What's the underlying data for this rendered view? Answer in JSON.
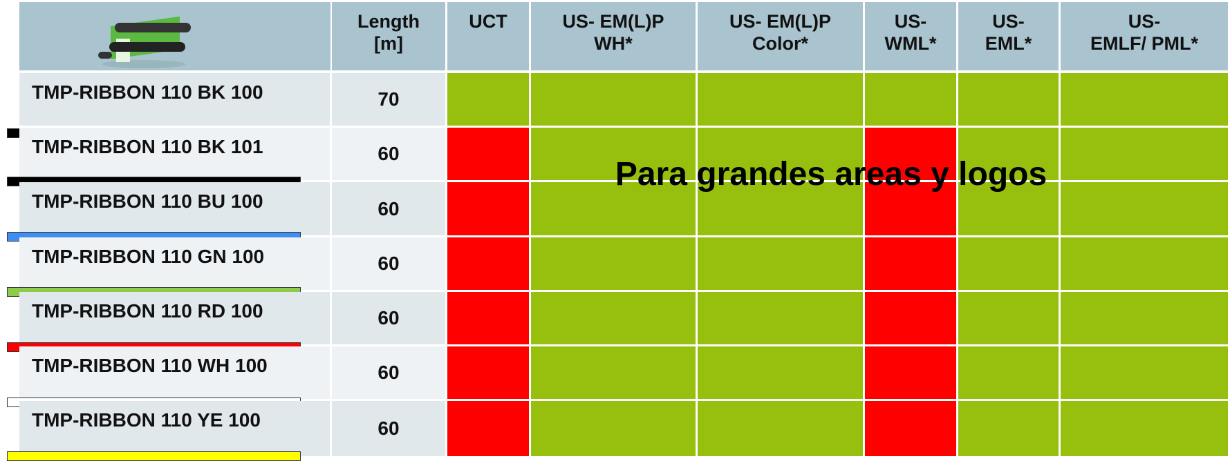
{
  "table": {
    "header": [
      "Length\n[m]",
      "UCT",
      "US- EM(L)P\nWH*",
      "US- EM(L)P\nColor*",
      "US-\nWML*",
      "US-\nEML*",
      "US-\nEMLF/ PML*"
    ],
    "rows": [
      {
        "name": "TMP-RIBBON 110 BK 100",
        "length": "70",
        "swatch": "#000000",
        "cells": [
          "#97bf0d",
          "#97bf0d",
          "#97bf0d",
          "#97bf0d",
          "#97bf0d",
          "#97bf0d"
        ]
      },
      {
        "name": "TMP-RIBBON 110 BK 101",
        "length": "60",
        "swatch": "#000000",
        "cells": [
          "#ff0000",
          "#97bf0d",
          "#97bf0d",
          "#ff0000",
          "#97bf0d",
          "#97bf0d"
        ]
      },
      {
        "name": "TMP-RIBBON 110 BU 100",
        "length": "60",
        "swatch": "#3d8ef0",
        "cells": [
          "#ff0000",
          "#97bf0d",
          "#97bf0d",
          "#ff0000",
          "#97bf0d",
          "#97bf0d"
        ]
      },
      {
        "name": "TMP-RIBBON 110 GN 100",
        "length": "60",
        "swatch": "#8fcb4a",
        "cells": [
          "#ff0000",
          "#97bf0d",
          "#97bf0d",
          "#ff0000",
          "#97bf0d",
          "#97bf0d"
        ]
      },
      {
        "name": "TMP-RIBBON 110 RD 100",
        "length": "60",
        "swatch": "#ff0000",
        "cells": [
          "#ff0000",
          "#97bf0d",
          "#97bf0d",
          "#ff0000",
          "#97bf0d",
          "#97bf0d"
        ]
      },
      {
        "name": "TMP-RIBBON 110 WH 100",
        "length": "60",
        "swatch": "#ffffff",
        "cells": [
          "#ff0000",
          "#97bf0d",
          "#97bf0d",
          "#ff0000",
          "#97bf0d",
          "#97bf0d"
        ]
      },
      {
        "name": "TMP-RIBBON 110 YE 100",
        "length": "60",
        "swatch": "#ffff00",
        "cells": [
          "#ff0000",
          "#97bf0d",
          "#97bf0d",
          "#ff0000",
          "#97bf0d",
          "#97bf0d"
        ]
      }
    ],
    "overlay": "Para grandes areas y logos"
  }
}
